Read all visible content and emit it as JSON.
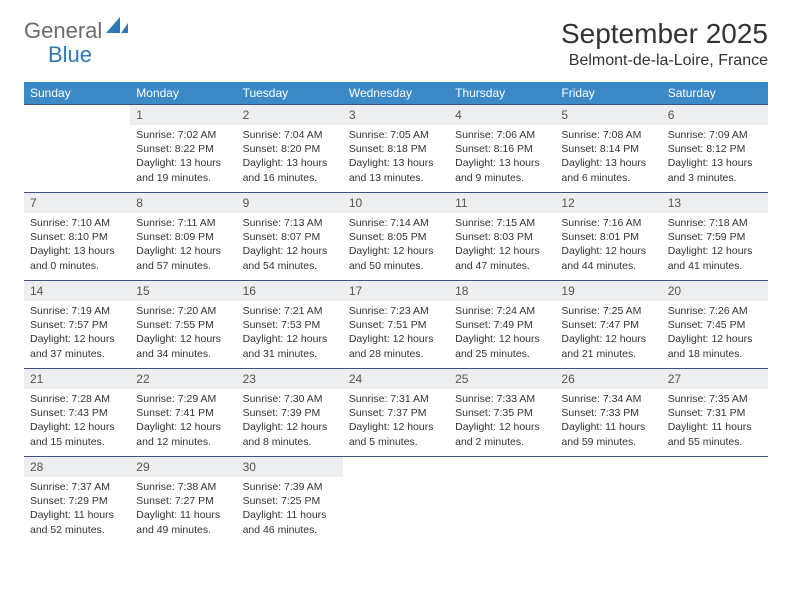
{
  "logo": {
    "text1": "General",
    "text2": "Blue"
  },
  "title": "September 2025",
  "location": "Belmont-de-la-Loire, France",
  "colors": {
    "headerBg": "#3b89c7",
    "rowBorder": "#3b567a",
    "dayBg": "#eceeef"
  },
  "daysOfWeek": [
    "Sunday",
    "Monday",
    "Tuesday",
    "Wednesday",
    "Thursday",
    "Friday",
    "Saturday"
  ],
  "startOffset": 1,
  "days": [
    {
      "n": 1,
      "sr": "7:02 AM",
      "ss": "8:22 PM",
      "dl": "13 hours and 19 minutes."
    },
    {
      "n": 2,
      "sr": "7:04 AM",
      "ss": "8:20 PM",
      "dl": "13 hours and 16 minutes."
    },
    {
      "n": 3,
      "sr": "7:05 AM",
      "ss": "8:18 PM",
      "dl": "13 hours and 13 minutes."
    },
    {
      "n": 4,
      "sr": "7:06 AM",
      "ss": "8:16 PM",
      "dl": "13 hours and 9 minutes."
    },
    {
      "n": 5,
      "sr": "7:08 AM",
      "ss": "8:14 PM",
      "dl": "13 hours and 6 minutes."
    },
    {
      "n": 6,
      "sr": "7:09 AM",
      "ss": "8:12 PM",
      "dl": "13 hours and 3 minutes."
    },
    {
      "n": 7,
      "sr": "7:10 AM",
      "ss": "8:10 PM",
      "dl": "13 hours and 0 minutes."
    },
    {
      "n": 8,
      "sr": "7:11 AM",
      "ss": "8:09 PM",
      "dl": "12 hours and 57 minutes."
    },
    {
      "n": 9,
      "sr": "7:13 AM",
      "ss": "8:07 PM",
      "dl": "12 hours and 54 minutes."
    },
    {
      "n": 10,
      "sr": "7:14 AM",
      "ss": "8:05 PM",
      "dl": "12 hours and 50 minutes."
    },
    {
      "n": 11,
      "sr": "7:15 AM",
      "ss": "8:03 PM",
      "dl": "12 hours and 47 minutes."
    },
    {
      "n": 12,
      "sr": "7:16 AM",
      "ss": "8:01 PM",
      "dl": "12 hours and 44 minutes."
    },
    {
      "n": 13,
      "sr": "7:18 AM",
      "ss": "7:59 PM",
      "dl": "12 hours and 41 minutes."
    },
    {
      "n": 14,
      "sr": "7:19 AM",
      "ss": "7:57 PM",
      "dl": "12 hours and 37 minutes."
    },
    {
      "n": 15,
      "sr": "7:20 AM",
      "ss": "7:55 PM",
      "dl": "12 hours and 34 minutes."
    },
    {
      "n": 16,
      "sr": "7:21 AM",
      "ss": "7:53 PM",
      "dl": "12 hours and 31 minutes."
    },
    {
      "n": 17,
      "sr": "7:23 AM",
      "ss": "7:51 PM",
      "dl": "12 hours and 28 minutes."
    },
    {
      "n": 18,
      "sr": "7:24 AM",
      "ss": "7:49 PM",
      "dl": "12 hours and 25 minutes."
    },
    {
      "n": 19,
      "sr": "7:25 AM",
      "ss": "7:47 PM",
      "dl": "12 hours and 21 minutes."
    },
    {
      "n": 20,
      "sr": "7:26 AM",
      "ss": "7:45 PM",
      "dl": "12 hours and 18 minutes."
    },
    {
      "n": 21,
      "sr": "7:28 AM",
      "ss": "7:43 PM",
      "dl": "12 hours and 15 minutes."
    },
    {
      "n": 22,
      "sr": "7:29 AM",
      "ss": "7:41 PM",
      "dl": "12 hours and 12 minutes."
    },
    {
      "n": 23,
      "sr": "7:30 AM",
      "ss": "7:39 PM",
      "dl": "12 hours and 8 minutes."
    },
    {
      "n": 24,
      "sr": "7:31 AM",
      "ss": "7:37 PM",
      "dl": "12 hours and 5 minutes."
    },
    {
      "n": 25,
      "sr": "7:33 AM",
      "ss": "7:35 PM",
      "dl": "12 hours and 2 minutes."
    },
    {
      "n": 26,
      "sr": "7:34 AM",
      "ss": "7:33 PM",
      "dl": "11 hours and 59 minutes."
    },
    {
      "n": 27,
      "sr": "7:35 AM",
      "ss": "7:31 PM",
      "dl": "11 hours and 55 minutes."
    },
    {
      "n": 28,
      "sr": "7:37 AM",
      "ss": "7:29 PM",
      "dl": "11 hours and 52 minutes."
    },
    {
      "n": 29,
      "sr": "7:38 AM",
      "ss": "7:27 PM",
      "dl": "11 hours and 49 minutes."
    },
    {
      "n": 30,
      "sr": "7:39 AM",
      "ss": "7:25 PM",
      "dl": "11 hours and 46 minutes."
    }
  ]
}
